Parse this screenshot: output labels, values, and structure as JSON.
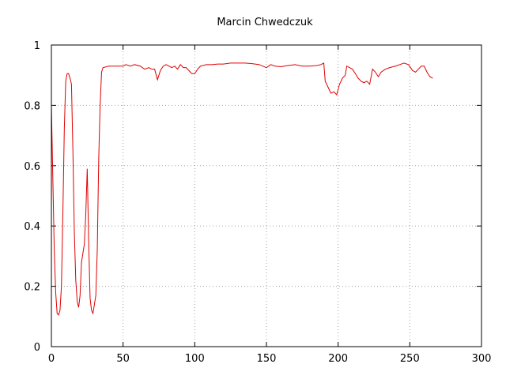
{
  "chart_data": {
    "type": "line",
    "title": "Marcin Chwedczuk",
    "xlabel": "",
    "ylabel": "",
    "xlim": [
      0,
      300
    ],
    "ylim": [
      0,
      1
    ],
    "x_ticks": [
      0,
      50,
      100,
      150,
      200,
      250,
      300
    ],
    "y_ticks": [
      0,
      0.2,
      0.4,
      0.6,
      0.8,
      1
    ],
    "x_tick_labels": [
      "0",
      "50",
      "100",
      "150",
      "200",
      "250",
      "300"
    ],
    "y_tick_labels": [
      "0",
      "0.2",
      "0.4",
      "0.6",
      "0.8",
      "1"
    ],
    "grid": true,
    "line_color": "#e00000",
    "series": [
      {
        "points": [
          [
            0,
            0.8
          ],
          [
            1,
            0.56
          ],
          [
            2,
            0.32
          ],
          [
            3,
            0.18
          ],
          [
            4,
            0.11
          ],
          [
            5,
            0.105
          ],
          [
            6,
            0.12
          ],
          [
            7,
            0.2
          ],
          [
            8,
            0.44
          ],
          [
            9,
            0.72
          ],
          [
            10,
            0.88
          ],
          [
            11,
            0.905
          ],
          [
            12,
            0.905
          ],
          [
            13,
            0.89
          ],
          [
            14,
            0.87
          ],
          [
            15,
            0.65
          ],
          [
            16,
            0.38
          ],
          [
            17,
            0.22
          ],
          [
            18,
            0.15
          ],
          [
            19,
            0.13
          ],
          [
            20,
            0.17
          ],
          [
            21,
            0.28
          ],
          [
            22,
            0.31
          ],
          [
            23,
            0.34
          ],
          [
            24,
            0.44
          ],
          [
            25,
            0.59
          ],
          [
            26,
            0.35
          ],
          [
            27,
            0.16
          ],
          [
            28,
            0.12
          ],
          [
            29,
            0.11
          ],
          [
            30,
            0.14
          ],
          [
            31,
            0.17
          ],
          [
            32,
            0.32
          ],
          [
            33,
            0.62
          ],
          [
            34,
            0.8
          ],
          [
            35,
            0.91
          ],
          [
            36,
            0.925
          ],
          [
            40,
            0.93
          ],
          [
            45,
            0.93
          ],
          [
            50,
            0.93
          ],
          [
            52,
            0.935
          ],
          [
            55,
            0.93
          ],
          [
            58,
            0.935
          ],
          [
            62,
            0.93
          ],
          [
            65,
            0.92
          ],
          [
            68,
            0.925
          ],
          [
            70,
            0.92
          ],
          [
            72,
            0.92
          ],
          [
            74,
            0.885
          ],
          [
            76,
            0.915
          ],
          [
            78,
            0.93
          ],
          [
            80,
            0.935
          ],
          [
            82,
            0.93
          ],
          [
            84,
            0.925
          ],
          [
            86,
            0.93
          ],
          [
            88,
            0.92
          ],
          [
            90,
            0.935
          ],
          [
            92,
            0.925
          ],
          [
            94,
            0.925
          ],
          [
            96,
            0.915
          ],
          [
            98,
            0.905
          ],
          [
            100,
            0.905
          ],
          [
            102,
            0.92
          ],
          [
            104,
            0.93
          ],
          [
            108,
            0.935
          ],
          [
            112,
            0.935
          ],
          [
            116,
            0.937
          ],
          [
            120,
            0.937
          ],
          [
            125,
            0.94
          ],
          [
            130,
            0.94
          ],
          [
            135,
            0.94
          ],
          [
            140,
            0.938
          ],
          [
            145,
            0.935
          ],
          [
            150,
            0.925
          ],
          [
            153,
            0.935
          ],
          [
            156,
            0.93
          ],
          [
            160,
            0.928
          ],
          [
            165,
            0.932
          ],
          [
            170,
            0.935
          ],
          [
            175,
            0.93
          ],
          [
            180,
            0.93
          ],
          [
            185,
            0.932
          ],
          [
            188,
            0.935
          ],
          [
            190,
            0.94
          ],
          [
            191,
            0.88
          ],
          [
            193,
            0.86
          ],
          [
            195,
            0.84
          ],
          [
            197,
            0.845
          ],
          [
            199,
            0.835
          ],
          [
            201,
            0.87
          ],
          [
            203,
            0.89
          ],
          [
            205,
            0.9
          ],
          [
            206,
            0.93
          ],
          [
            208,
            0.925
          ],
          [
            210,
            0.92
          ],
          [
            212,
            0.905
          ],
          [
            214,
            0.89
          ],
          [
            216,
            0.88
          ],
          [
            218,
            0.875
          ],
          [
            220,
            0.88
          ],
          [
            222,
            0.87
          ],
          [
            224,
            0.92
          ],
          [
            226,
            0.91
          ],
          [
            228,
            0.895
          ],
          [
            230,
            0.91
          ],
          [
            233,
            0.92
          ],
          [
            236,
            0.925
          ],
          [
            240,
            0.93
          ],
          [
            243,
            0.935
          ],
          [
            246,
            0.94
          ],
          [
            249,
            0.935
          ],
          [
            252,
            0.915
          ],
          [
            254,
            0.91
          ],
          [
            256,
            0.92
          ],
          [
            258,
            0.93
          ],
          [
            260,
            0.93
          ],
          [
            262,
            0.91
          ],
          [
            264,
            0.895
          ],
          [
            266,
            0.89
          ]
        ]
      }
    ]
  }
}
